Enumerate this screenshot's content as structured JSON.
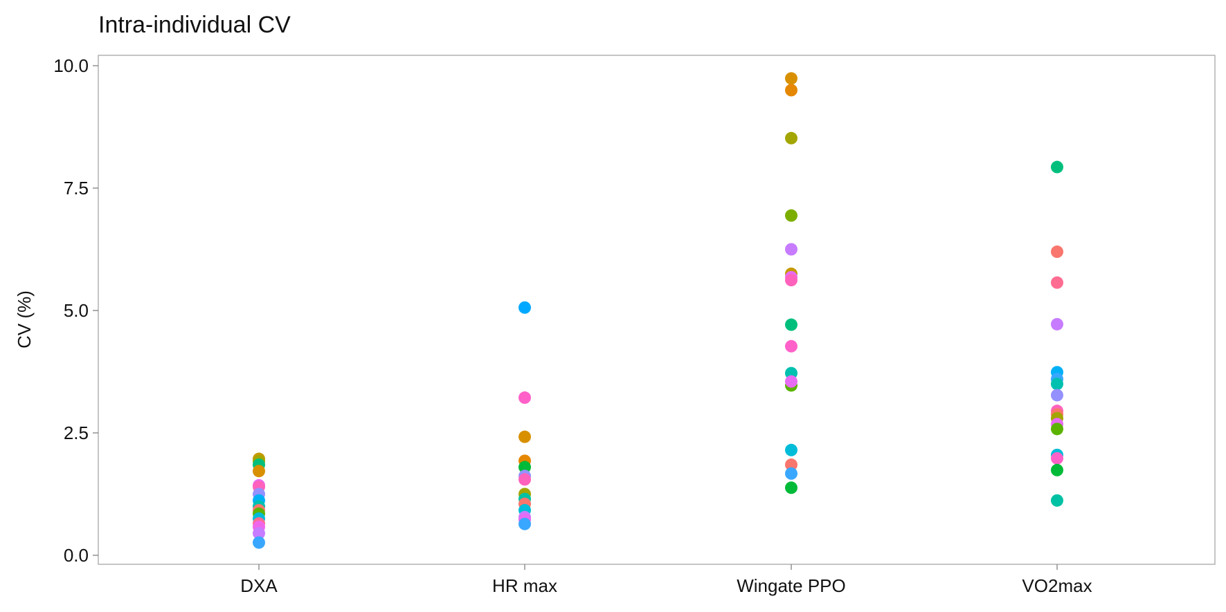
{
  "chart_data": {
    "type": "scatter",
    "title": "Intra-individual CV",
    "xlabel": "",
    "ylabel": "CV (%)",
    "categories": [
      "DXA",
      "HR max",
      "Wingate PPO",
      "VO2max"
    ],
    "yticks": [
      "0.0",
      "2.5",
      "5.0",
      "7.5",
      "10.0"
    ],
    "ylim": [
      -0.2,
      10.2
    ],
    "grid": false,
    "legend": "none",
    "points": [
      {
        "x": "DXA",
        "y": 1.97,
        "color": "#C49A00"
      },
      {
        "x": "DXA",
        "y": 1.92,
        "color": "#A3A500"
      },
      {
        "x": "DXA",
        "y": 1.85,
        "color": "#00BF7D"
      },
      {
        "x": "DXA",
        "y": 1.72,
        "color": "#D89000"
      },
      {
        "x": "DXA",
        "y": 1.43,
        "color": "#E76BF3"
      },
      {
        "x": "DXA",
        "y": 1.4,
        "color": "#FF62BC"
      },
      {
        "x": "DXA",
        "y": 1.25,
        "color": "#9590FF"
      },
      {
        "x": "DXA",
        "y": 1.12,
        "color": "#00B0F6"
      },
      {
        "x": "DXA",
        "y": 1.0,
        "color": "#00C0AF"
      },
      {
        "x": "DXA",
        "y": 0.92,
        "color": "#F8766D"
      },
      {
        "x": "DXA",
        "y": 0.85,
        "color": "#5BB300"
      },
      {
        "x": "DXA",
        "y": 0.75,
        "color": "#00BCD8"
      },
      {
        "x": "DXA",
        "y": 0.65,
        "color": "#FF6C91"
      },
      {
        "x": "DXA",
        "y": 0.58,
        "color": "#F066EA"
      },
      {
        "x": "DXA",
        "y": 0.45,
        "color": "#C77CFF"
      },
      {
        "x": "DXA",
        "y": 0.26,
        "color": "#39A7FF"
      },
      {
        "x": "HR max",
        "y": 5.06,
        "color": "#00A9FF"
      },
      {
        "x": "HR max",
        "y": 3.22,
        "color": "#FF61C9"
      },
      {
        "x": "HR max",
        "y": 2.42,
        "color": "#D89000"
      },
      {
        "x": "HR max",
        "y": 1.93,
        "color": "#E58700"
      },
      {
        "x": "HR max",
        "y": 1.8,
        "color": "#00BA38"
      },
      {
        "x": "HR max",
        "y": 1.62,
        "color": "#9590FF"
      },
      {
        "x": "HR max",
        "y": 1.55,
        "color": "#FF62BC"
      },
      {
        "x": "HR max",
        "y": 1.25,
        "color": "#A3A500"
      },
      {
        "x": "HR max",
        "y": 1.15,
        "color": "#00C1A3"
      },
      {
        "x": "HR max",
        "y": 1.05,
        "color": "#F8766D"
      },
      {
        "x": "HR max",
        "y": 0.92,
        "color": "#00BCD8"
      },
      {
        "x": "HR max",
        "y": 0.78,
        "color": "#C77CFF"
      },
      {
        "x": "HR max",
        "y": 0.73,
        "color": "#E76BF3"
      },
      {
        "x": "HR max",
        "y": 0.64,
        "color": "#39A7FF"
      },
      {
        "x": "Wingate PPO",
        "y": 9.74,
        "color": "#D89000"
      },
      {
        "x": "Wingate PPO",
        "y": 9.5,
        "color": "#E58700"
      },
      {
        "x": "Wingate PPO",
        "y": 8.52,
        "color": "#A3A500"
      },
      {
        "x": "Wingate PPO",
        "y": 6.94,
        "color": "#7CAE00"
      },
      {
        "x": "Wingate PPO",
        "y": 6.25,
        "color": "#C77CFF"
      },
      {
        "x": "Wingate PPO",
        "y": 5.75,
        "color": "#C49A00"
      },
      {
        "x": "Wingate PPO",
        "y": 5.68,
        "color": "#E76BF3"
      },
      {
        "x": "Wingate PPO",
        "y": 5.62,
        "color": "#FF62BC"
      },
      {
        "x": "Wingate PPO",
        "y": 4.71,
        "color": "#00BF7D"
      },
      {
        "x": "Wingate PPO",
        "y": 4.27,
        "color": "#FF61C9"
      },
      {
        "x": "Wingate PPO",
        "y": 3.72,
        "color": "#00C0AF"
      },
      {
        "x": "Wingate PPO",
        "y": 3.47,
        "color": "#5BB300"
      },
      {
        "x": "Wingate PPO",
        "y": 3.55,
        "color": "#E76BF3"
      },
      {
        "x": "Wingate PPO",
        "y": 2.15,
        "color": "#00BCD8"
      },
      {
        "x": "Wingate PPO",
        "y": 1.85,
        "color": "#F8766D"
      },
      {
        "x": "Wingate PPO",
        "y": 1.67,
        "color": "#39A7FF"
      },
      {
        "x": "Wingate PPO",
        "y": 1.38,
        "color": "#00BA38"
      },
      {
        "x": "VO2max",
        "y": 7.93,
        "color": "#00BF7D"
      },
      {
        "x": "VO2max",
        "y": 6.2,
        "color": "#F8766D"
      },
      {
        "x": "VO2max",
        "y": 5.57,
        "color": "#FF6C91"
      },
      {
        "x": "VO2max",
        "y": 4.72,
        "color": "#C77CFF"
      },
      {
        "x": "VO2max",
        "y": 3.74,
        "color": "#00B0F6"
      },
      {
        "x": "VO2max",
        "y": 3.6,
        "color": "#39A7FF"
      },
      {
        "x": "VO2max",
        "y": 3.5,
        "color": "#00C0AF"
      },
      {
        "x": "VO2max",
        "y": 3.27,
        "color": "#9590FF"
      },
      {
        "x": "VO2max",
        "y": 2.95,
        "color": "#FF62BC"
      },
      {
        "x": "VO2max",
        "y": 2.88,
        "color": "#F8766D"
      },
      {
        "x": "VO2max",
        "y": 2.8,
        "color": "#A3A500"
      },
      {
        "x": "VO2max",
        "y": 2.68,
        "color": "#E76BF3"
      },
      {
        "x": "VO2max",
        "y": 2.58,
        "color": "#5BB300"
      },
      {
        "x": "VO2max",
        "y": 2.05,
        "color": "#00BCD8"
      },
      {
        "x": "VO2max",
        "y": 1.98,
        "color": "#FF61C9"
      },
      {
        "x": "VO2max",
        "y": 1.74,
        "color": "#00BA38"
      },
      {
        "x": "VO2max",
        "y": 1.12,
        "color": "#00C1A3"
      }
    ]
  }
}
